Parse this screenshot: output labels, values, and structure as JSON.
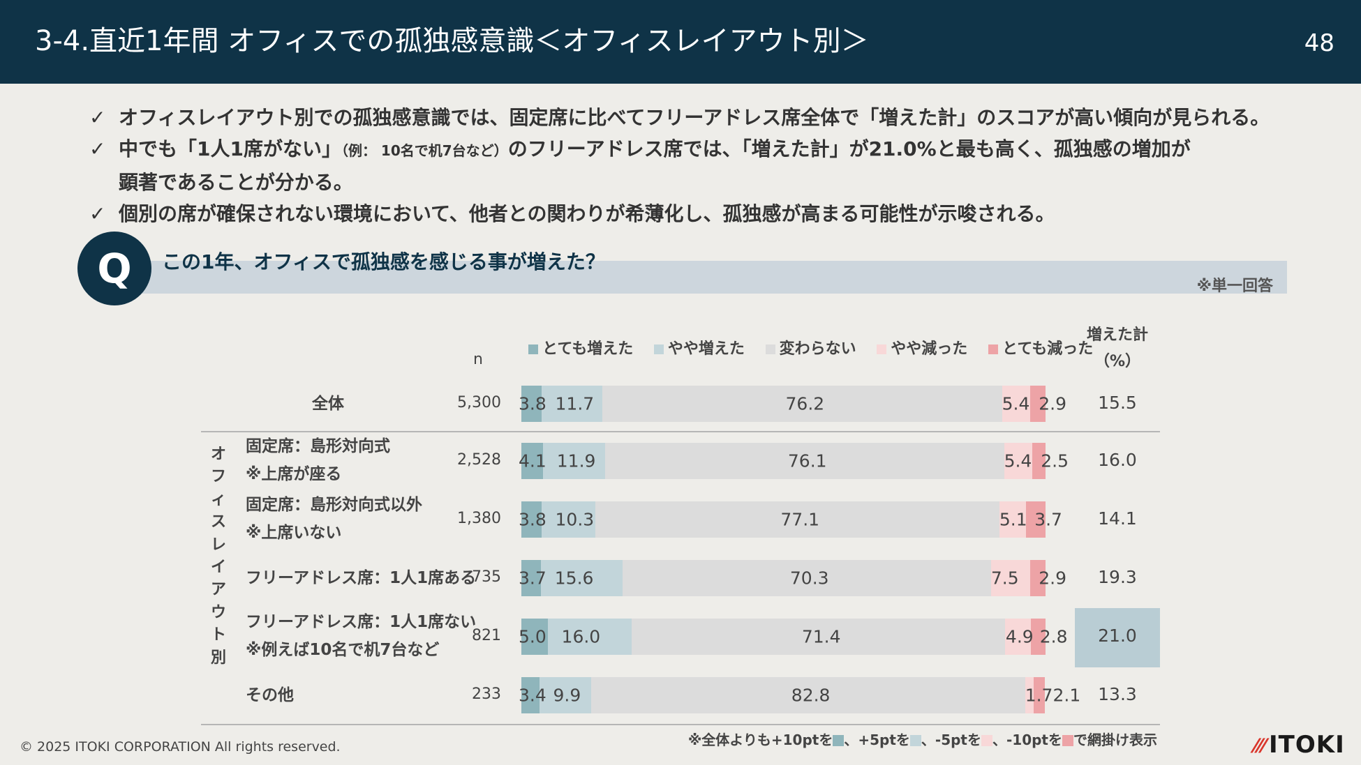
{
  "header": {
    "title": "3-4.直近1年間 オフィスでの孤独感意識＜オフィスレイアウト別＞",
    "page_number": "48"
  },
  "bullets": [
    {
      "check": "✓",
      "text": "オフィスレイアウト別での孤独感意識では、固定席に比べてフリーアドレス席全体で「増えた計」のスコアが高い傾向が見られる。"
    },
    {
      "check": "✓",
      "text_a": "中でも「1人1席がない」",
      "text_small": "（例： 10名で机7台など）",
      "text_b": "のフリーアドレス席では、「増えた計」が21.0%と最も高く、孤独感の増加が",
      "text_c": "顕著であることが分かる。"
    },
    {
      "check": "✓",
      "text": "個別の席が確保されない環境において、他者との関わりが希薄化し、孤独感が高まる可能性が示唆される。"
    }
  ],
  "question": {
    "badge": "Q",
    "text": "この1年、オフィスで孤独感を感じる事が増えた？",
    "note": "※単一回答"
  },
  "chart_data": {
    "type": "bar",
    "orientation": "horizontal",
    "stacked": true,
    "percent_scale": [
      0,
      100
    ],
    "n_header": "n",
    "sum_header_line1": "増えた計",
    "sum_header_line2": "（%）",
    "group_label": "オフィスレイアウト別",
    "series": [
      {
        "name": "とても増えた",
        "color": "#8fb5bb"
      },
      {
        "name": "やや増えた",
        "color": "#c2d5da"
      },
      {
        "name": "変わらない",
        "color": "#dcdcdc"
      },
      {
        "name": "やや減った",
        "color": "#f8d8d8"
      },
      {
        "name": "とても減った",
        "color": "#eda3a6"
      }
    ],
    "rows": [
      {
        "label1": "全体",
        "label2": "",
        "n": "5,300",
        "values": [
          3.8,
          11.7,
          76.2,
          5.4,
          2.9
        ],
        "labels": [
          "3.8",
          "11.7",
          "76.2",
          "5.4",
          "2.9"
        ],
        "sum": "15.5"
      },
      {
        "label1": "固定席：島形対向式",
        "label2": "※上席が座る",
        "n": "2,528",
        "values": [
          4.1,
          11.9,
          76.1,
          5.4,
          2.5
        ],
        "labels": [
          "4.1",
          "11.9",
          "76.1",
          "5.4",
          "2.5"
        ],
        "sum": "16.0"
      },
      {
        "label1": "固定席：島形対向式以外",
        "label2": "※上席いない",
        "n": "1,380",
        "values": [
          3.8,
          10.3,
          77.1,
          5.1,
          3.7
        ],
        "labels": [
          "3.8",
          "10.3",
          "77.1",
          "5.1",
          "3.7"
        ],
        "sum": "14.1"
      },
      {
        "label1": "フリーアドレス席：1人1席ある",
        "label2": "",
        "n": "735",
        "values": [
          3.7,
          15.6,
          70.3,
          7.5,
          2.9
        ],
        "labels": [
          "3.7",
          "15.6",
          "70.3",
          "7.5",
          "2.9"
        ],
        "sum": "19.3"
      },
      {
        "label1": "フリーアドレス席：1人1席ない",
        "label2": "※例えば10名で机7台など",
        "n": "821",
        "values": [
          5.0,
          16.0,
          71.4,
          4.9,
          2.8
        ],
        "labels": [
          "5.0",
          "16.0",
          "71.4",
          "4.9",
          "2.8"
        ],
        "sum": "21.0",
        "highlight": true
      },
      {
        "label1": "その他",
        "label2": "",
        "n": "233",
        "values": [
          3.4,
          9.9,
          82.8,
          1.7,
          2.1
        ],
        "labels": [
          "3.4",
          "9.9",
          "82.8",
          "1.72.1",
          ""
        ],
        "sum": "13.3"
      }
    ],
    "footnote": {
      "p1": "※全体よりも+10ptを",
      "p2": "、+5ptを",
      "p3": "、-5ptを",
      "p4": "、-10ptを",
      "p5": "で網掛け表示",
      "colors": [
        "#8fb5bb",
        "#c2d5da",
        "#f8d8d8",
        "#eda3a6"
      ]
    }
  },
  "footer": {
    "copyright": "© 2025 ITOKI CORPORATION All rights reserved.",
    "logo_mark": "⁄⁄⁄",
    "logo_text": "ITOKI"
  }
}
